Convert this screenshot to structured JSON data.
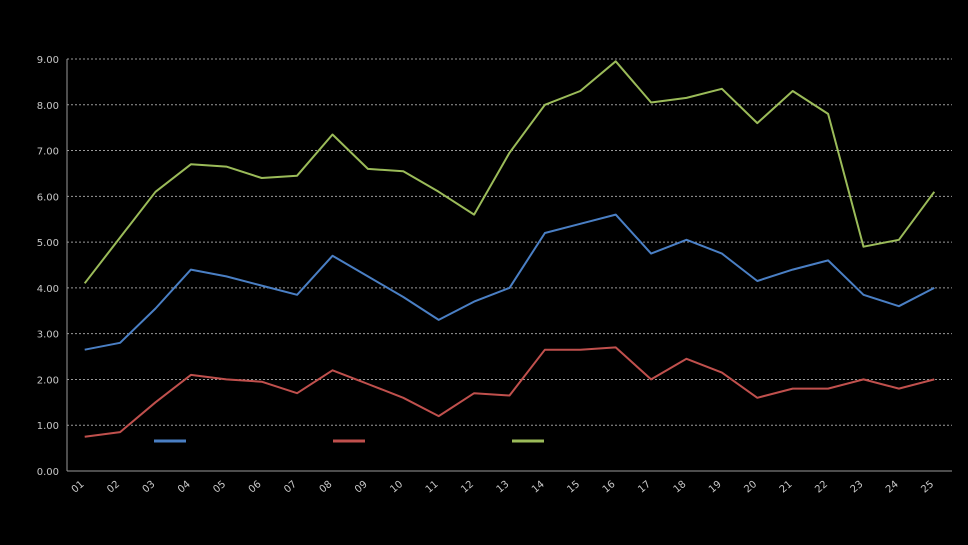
{
  "chart_data": {
    "type": "line",
    "title": "",
    "xlabel": "",
    "ylabel": "",
    "ylim": [
      0,
      9
    ],
    "grid": true,
    "legend_placement": "bottom-left",
    "categories": [
      "01",
      "02",
      "03",
      "04",
      "05",
      "06",
      "07",
      "08",
      "09",
      "10",
      "11",
      "12",
      "13",
      "14",
      "15",
      "16",
      "17",
      "18",
      "19",
      "20",
      "21",
      "22",
      "23",
      "24",
      "25"
    ],
    "series": [
      {
        "name": "",
        "color": "#4a7fc4",
        "values": [
          2.65,
          2.8,
          3.55,
          4.4,
          4.25,
          4.05,
          3.85,
          4.7,
          4.25,
          3.8,
          3.3,
          3.7,
          4.0,
          5.2,
          5.4,
          5.6,
          4.75,
          5.05,
          4.75,
          4.15,
          4.4,
          4.6,
          3.85,
          3.6,
          4.0
        ]
      },
      {
        "name": "",
        "color": "#c0504d",
        "values": [
          0.75,
          0.85,
          1.5,
          2.1,
          2.0,
          1.95,
          1.7,
          2.2,
          1.9,
          1.6,
          1.2,
          1.7,
          1.65,
          2.65,
          2.65,
          2.7,
          2.0,
          2.45,
          2.15,
          1.6,
          1.8,
          1.8,
          2.0,
          1.8,
          2.0
        ]
      },
      {
        "name": "",
        "color": "#9bbb59",
        "values": [
          4.1,
          5.1,
          6.1,
          6.7,
          6.65,
          6.4,
          6.45,
          7.35,
          6.6,
          6.55,
          6.1,
          5.6,
          6.95,
          8.0,
          8.3,
          8.95,
          8.05,
          8.15,
          8.35,
          7.6,
          8.3,
          7.8,
          4.9,
          5.05,
          6.1
        ]
      }
    ]
  }
}
